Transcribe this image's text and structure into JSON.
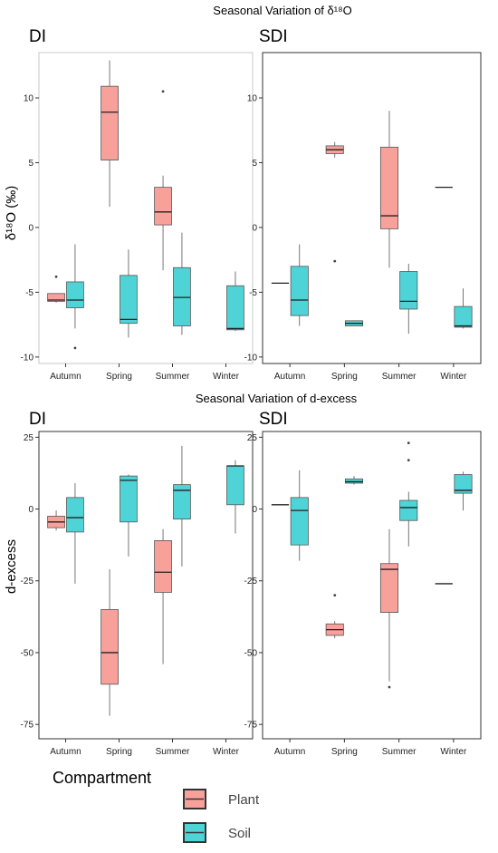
{
  "chart_data": [
    {
      "type": "boxplot",
      "title": "Seasonal Variation of δ¹⁸O",
      "panel": "DI",
      "ylabel": "δ¹⁸O (‰)",
      "categories": [
        "Autumn",
        "Spring",
        "Summer",
        "Winter"
      ],
      "ylim": [
        -10.5,
        13.5
      ],
      "yticks": [
        -10,
        -5,
        0,
        5,
        10
      ],
      "series": [
        {
          "name": "Plant",
          "boxes": [
            {
              "category": "Autumn",
              "min": -5.8,
              "q1": -5.7,
              "median": -5.6,
              "q3": -5.1,
              "max": -5.1,
              "outliers": [
                -3.8
              ]
            },
            {
              "category": "Spring",
              "min": 1.6,
              "q1": 5.2,
              "median": 8.9,
              "q3": 10.9,
              "max": 12.9,
              "outliers": []
            },
            {
              "category": "Summer",
              "min": -3.3,
              "q1": 0.2,
              "median": 1.2,
              "q3": 3.1,
              "max": 4.0,
              "outliers": [
                10.5
              ]
            }
          ]
        },
        {
          "name": "Soil",
          "boxes": [
            {
              "category": "Autumn",
              "min": -7.8,
              "q1": -6.2,
              "median": -5.6,
              "q3": -4.2,
              "max": -1.3,
              "outliers": [
                -9.3
              ]
            },
            {
              "category": "Spring",
              "min": -8.5,
              "q1": -7.4,
              "median": -7.1,
              "q3": -3.7,
              "max": -1.7,
              "outliers": []
            },
            {
              "category": "Summer",
              "min": -8.3,
              "q1": -7.6,
              "median": -5.4,
              "q3": -3.1,
              "max": -0.4,
              "outliers": []
            },
            {
              "category": "Winter",
              "min": -8.0,
              "q1": -7.9,
              "median": -7.8,
              "q3": -4.5,
              "max": -3.4,
              "outliers": []
            }
          ]
        }
      ]
    },
    {
      "type": "boxplot",
      "panel": "SDI",
      "categories": [
        "Autumn",
        "Spring",
        "Summer",
        "Winter"
      ],
      "ylim": [
        -10.5,
        13.5
      ],
      "yticks": [
        -10,
        -5,
        0,
        5,
        10
      ],
      "series": [
        {
          "name": "Plant",
          "boxes": [
            {
              "category": "Autumn",
              "min": -4.3,
              "q1": -4.3,
              "median": -4.3,
              "q3": -4.3,
              "max": -4.3,
              "outliers": []
            },
            {
              "category": "Spring",
              "min": 5.4,
              "q1": 5.7,
              "median": 6.0,
              "q3": 6.3,
              "max": 6.6,
              "outliers": [
                -2.6
              ]
            },
            {
              "category": "Summer",
              "min": -3.1,
              "q1": -0.1,
              "median": 0.9,
              "q3": 6.2,
              "max": 9.0,
              "outliers": []
            },
            {
              "category": "Winter",
              "min": 3.1,
              "q1": 3.1,
              "median": 3.1,
              "q3": 3.1,
              "max": 3.1,
              "outliers": []
            }
          ]
        },
        {
          "name": "Soil",
          "boxes": [
            {
              "category": "Autumn",
              "min": -7.6,
              "q1": -6.8,
              "median": -5.6,
              "q3": -3.0,
              "max": -1.3,
              "outliers": []
            },
            {
              "category": "Spring",
              "min": -7.6,
              "q1": -7.6,
              "median": -7.4,
              "q3": -7.2,
              "max": -7.2,
              "outliers": []
            },
            {
              "category": "Summer",
              "min": -8.2,
              "q1": -6.3,
              "median": -5.7,
              "q3": -3.4,
              "max": -2.8,
              "outliers": []
            },
            {
              "category": "Winter",
              "min": -7.8,
              "q1": -7.7,
              "median": -7.6,
              "q3": -6.1,
              "max": -4.7,
              "outliers": []
            }
          ]
        }
      ]
    },
    {
      "type": "boxplot",
      "title": "Seasonal Variation of d-excess",
      "panel": "DI",
      "ylabel": "d-excess",
      "categories": [
        "Autumn",
        "Spring",
        "Summer",
        "Winter"
      ],
      "ylim": [
        -80,
        27
      ],
      "yticks": [
        -75,
        -50,
        -25,
        0,
        25
      ],
      "series": [
        {
          "name": "Plant",
          "boxes": [
            {
              "category": "Autumn",
              "min": -7.5,
              "q1": -6.5,
              "median": -4.5,
              "q3": -2.5,
              "max": -0.5,
              "outliers": []
            },
            {
              "category": "Spring",
              "min": -72,
              "q1": -61,
              "median": -50,
              "q3": -35,
              "max": -21,
              "outliers": []
            },
            {
              "category": "Summer",
              "min": -54,
              "q1": -29,
              "median": -22,
              "q3": -11,
              "max": -7,
              "outliers": []
            }
          ]
        },
        {
          "name": "Soil",
          "boxes": [
            {
              "category": "Autumn",
              "min": -26,
              "q1": -8,
              "median": -3,
              "q3": 4,
              "max": 9,
              "outliers": []
            },
            {
              "category": "Spring",
              "min": -16.5,
              "q1": -4.5,
              "median": 10,
              "q3": 11.5,
              "max": 12,
              "outliers": []
            },
            {
              "category": "Summer",
              "min": -20,
              "q1": -3.5,
              "median": 6.5,
              "q3": 8.5,
              "max": 22,
              "outliers": []
            },
            {
              "category": "Winter",
              "min": -8.5,
              "q1": 1.5,
              "median": 15,
              "q3": 15,
              "max": 17,
              "outliers": []
            }
          ]
        }
      ]
    },
    {
      "type": "boxplot",
      "panel": "SDI",
      "categories": [
        "Autumn",
        "Spring",
        "Summer",
        "Winter"
      ],
      "ylim": [
        -80,
        27
      ],
      "yticks": [
        -75,
        -50,
        -25,
        0,
        25
      ],
      "series": [
        {
          "name": "Plant",
          "boxes": [
            {
              "category": "Autumn",
              "min": 1.5,
              "q1": 1.5,
              "median": 1.5,
              "q3": 1.5,
              "max": 1.5,
              "outliers": []
            },
            {
              "category": "Spring",
              "min": -45,
              "q1": -44,
              "median": -42,
              "q3": -40,
              "max": -39,
              "outliers": [
                -30
              ]
            },
            {
              "category": "Summer",
              "min": -60,
              "q1": -36,
              "median": -21,
              "q3": -19,
              "max": -7,
              "outliers": [
                -62
              ]
            },
            {
              "category": "Winter",
              "min": -26,
              "q1": -26,
              "median": -26,
              "q3": -26,
              "max": -26,
              "outliers": []
            }
          ]
        },
        {
          "name": "Soil",
          "boxes": [
            {
              "category": "Autumn",
              "min": -18,
              "q1": -12.5,
              "median": -0.5,
              "q3": 4,
              "max": 13.5,
              "outliers": []
            },
            {
              "category": "Spring",
              "min": 8.5,
              "q1": 9,
              "median": 9.5,
              "q3": 10.5,
              "max": 11.5,
              "outliers": []
            },
            {
              "category": "Summer",
              "min": -13,
              "q1": -4,
              "median": 0.5,
              "q3": 3,
              "max": 6,
              "outliers": [
                17,
                23
              ]
            },
            {
              "category": "Winter",
              "min": -0.5,
              "q1": 5.5,
              "median": 6.5,
              "q3": 12,
              "max": 13,
              "outliers": []
            }
          ]
        }
      ]
    }
  ],
  "legend": {
    "title": "Compartment",
    "items": [
      {
        "label": "Plant",
        "color": "#F8A19B"
      },
      {
        "label": "Soil",
        "color": "#4ED4D7"
      }
    ]
  }
}
